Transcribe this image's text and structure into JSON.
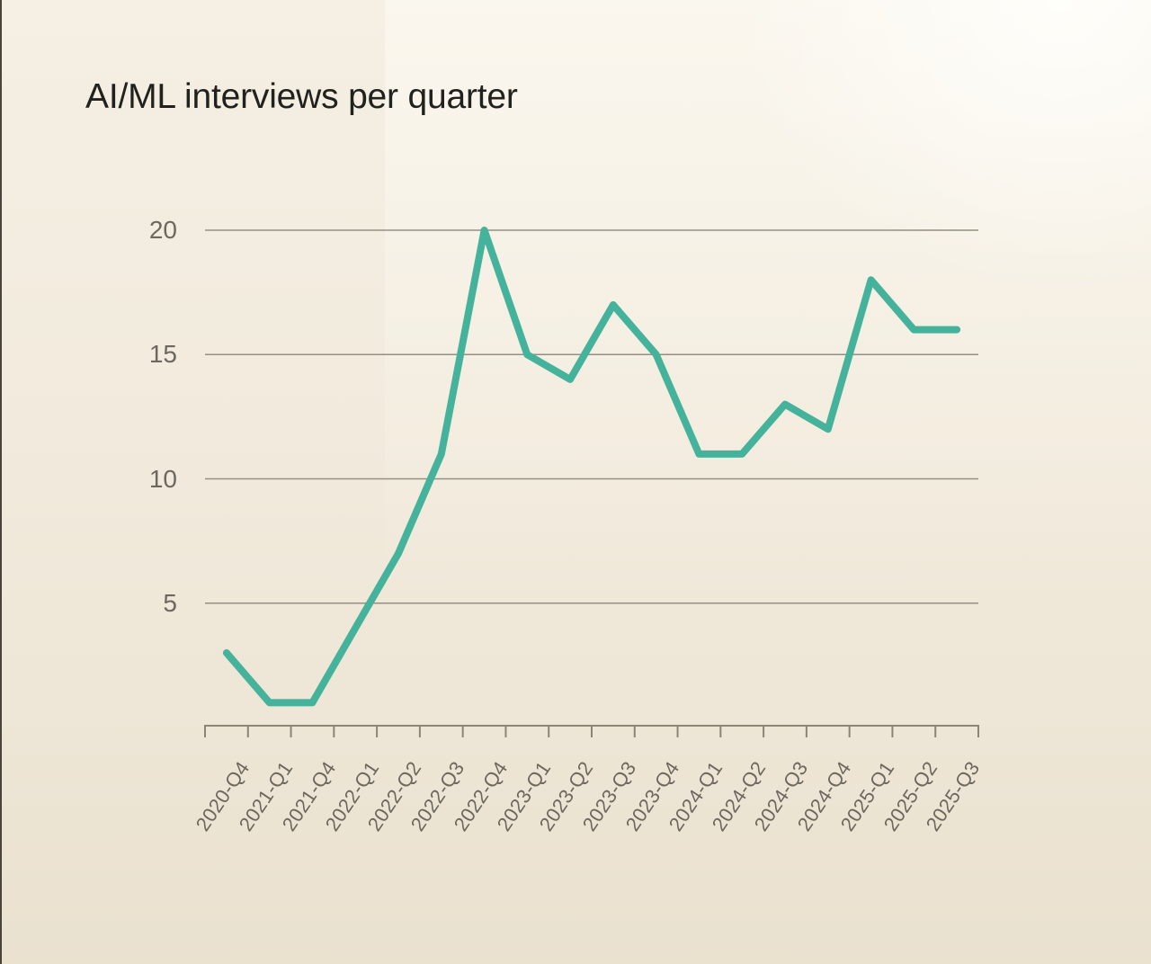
{
  "window": {
    "left_border_color": "#49453c"
  },
  "chart_data": {
    "type": "line",
    "title": "AI/ML interviews per quarter",
    "categories": [
      "2020-Q4",
      "2021-Q1",
      "2021-Q4",
      "2022-Q1",
      "2022-Q2",
      "2022-Q3",
      "2022-Q4",
      "2023-Q1",
      "2023-Q2",
      "2023-Q3",
      "2023-Q4",
      "2024-Q1",
      "2024-Q2",
      "2024-Q3",
      "2024-Q4",
      "2025-Q1",
      "2025-Q2",
      "2025-Q3"
    ],
    "values": [
      3,
      1,
      1,
      4,
      7,
      11,
      20,
      15,
      14,
      17,
      15,
      11,
      11,
      13,
      12,
      18,
      16,
      16
    ],
    "xlabel": "",
    "ylabel": "",
    "ylim": [
      0,
      21
    ],
    "yticks": [
      5,
      10,
      15,
      20
    ],
    "grid": "horizontal-only",
    "legend": "none",
    "line_color": "#45b29c",
    "grid_color": "#948f82",
    "axis_color": "#8a8577",
    "label_color": "#6d685e",
    "title_color": "#21211d",
    "background_base": "#f1eadc",
    "background_highlight": "#fffdf6",
    "background_bottom": "#eae1cf"
  }
}
